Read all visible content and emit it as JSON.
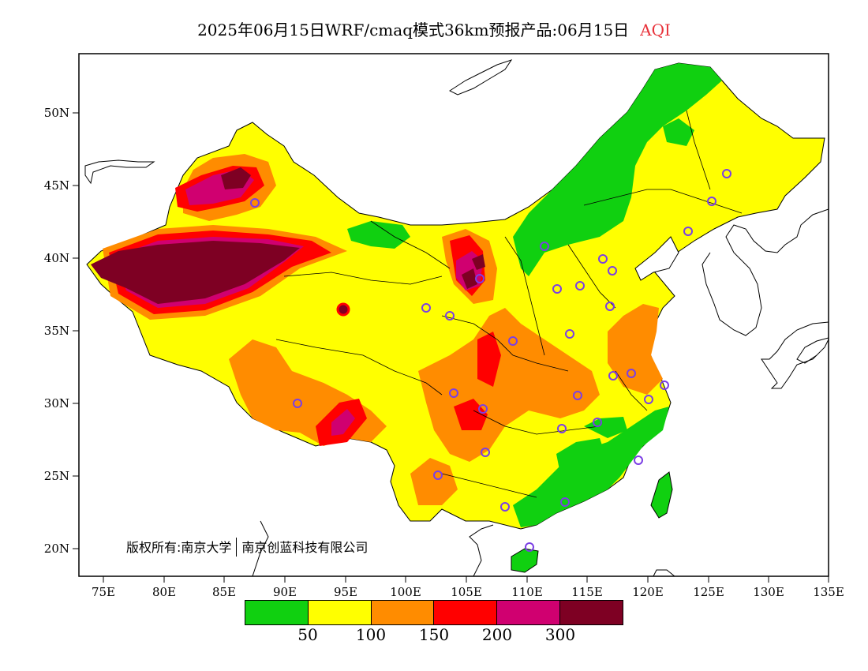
{
  "title": {
    "main": "2025年06月15日WRF/cmaq模式36km预报产品:06月15日",
    "variable": "AQI"
  },
  "axes": {
    "lon_labels": [
      "75E",
      "80E",
      "85E",
      "90E",
      "95E",
      "100E",
      "105E",
      "110E",
      "115E",
      "120E",
      "125E",
      "130E",
      "135E"
    ],
    "lat_labels": [
      "50N",
      "45N",
      "40N",
      "35N",
      "30N",
      "25N",
      "20N"
    ]
  },
  "copyright": {
    "left": "版权所有:南京大学",
    "right": "南京创蓝科技有限公司"
  },
  "legend": {
    "colors": [
      "#10d010",
      "#ffff00",
      "#ff8c00",
      "#ff0000",
      "#d00070",
      "#7e0023"
    ],
    "tick_labels": [
      "50",
      "100",
      "150",
      "200",
      "300"
    ]
  },
  "stations_count_note": "",
  "colors": {
    "good": "#10d010",
    "moderate": "#ffff00",
    "usg": "#ff8c00",
    "unhealthy": "#ff0000",
    "very_unhealthy": "#d00070",
    "hazardous": "#7e0023",
    "station_marker": "#7b3fe4"
  }
}
